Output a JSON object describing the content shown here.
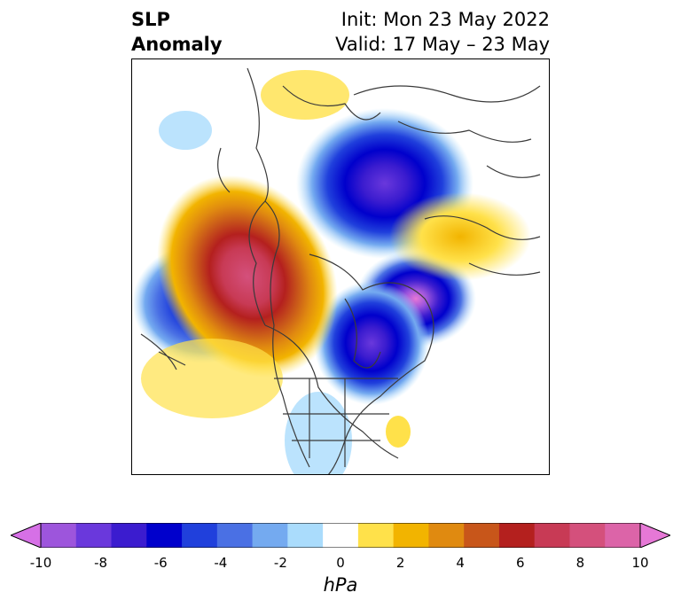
{
  "title": {
    "line1": "SLP",
    "line2": "Anomaly",
    "init": "Init: Mon 23 May 2022",
    "valid": "Valid: 17 May – 23 May"
  },
  "colorbar": {
    "units": "hPa",
    "tick_labels": [
      "-10",
      "-8",
      "-6",
      "-4",
      "-2",
      "0",
      "2",
      "4",
      "6",
      "8",
      "10"
    ],
    "colors": [
      "#d670e6",
      "#9d55dc",
      "#6a38dc",
      "#3b1ccf",
      "#0000cc",
      "#2040dc",
      "#4a70e4",
      "#74aaf0",
      "#aadcfc",
      "#ffffff",
      "#ffe14a",
      "#f2b400",
      "#e08a10",
      "#c8561a",
      "#b4201e",
      "#c83a55",
      "#d4507c",
      "#dc64a8",
      "#e678d6"
    ]
  },
  "map": {
    "anomaly_centers": [
      {
        "label": "low",
        "color": "#3b1ccf"
      },
      {
        "label": "high",
        "color": "#c83a55"
      }
    ]
  }
}
